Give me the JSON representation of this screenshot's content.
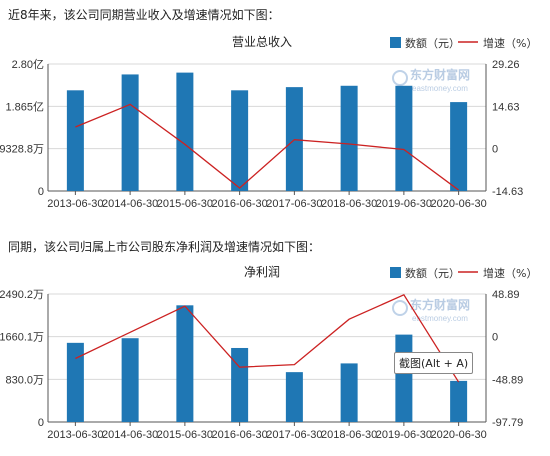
{
  "intro_1": "近8年来，该公司同期营业收入及增速情况如下图：",
  "intro_2": "同期，该公司归属上市公司股东净利润及增速情况如下图：",
  "tooltip": "截图(Alt + A)",
  "watermark": {
    "brand": "东方财富网",
    "url": "eastmoney.com"
  },
  "colors": {
    "bar": "#1f77b4",
    "line": "#cc2222",
    "grid": "#d8d8d8",
    "axis": "#555555"
  },
  "chart_data": [
    {
      "type": "bar",
      "title": "营业总收入",
      "legend": {
        "bar_label": "数额（元）",
        "line_label": "增速（%）"
      },
      "categories": [
        "2013-06-30",
        "2014-06-30",
        "2015-06-30",
        "2016-06-30",
        "2017-06-30",
        "2018-06-30",
        "2019-06-30",
        "2020-06-30"
      ],
      "bar_values": [
        2.22,
        2.57,
        2.61,
        2.22,
        2.29,
        2.32,
        2.32,
        1.96
      ],
      "line_values": [
        7.5,
        15.3,
        1.5,
        -13.6,
        3.1,
        1.6,
        -0.3,
        -14.3
      ],
      "y_left_ticks": [
        "2.80亿",
        "1.865亿",
        "9328.8万",
        "0"
      ],
      "y_left_range": [
        0,
        2.8
      ],
      "y_right_ticks": [
        "29.26",
        "14.63",
        "0",
        "-14.63"
      ],
      "y_right_range": [
        -14.63,
        29.26
      ]
    },
    {
      "type": "bar",
      "title": "净利润",
      "legend": {
        "bar_label": "数额（元）",
        "line_label": "增速（%）"
      },
      "categories": [
        "2013-06-30",
        "2014-06-30",
        "2015-06-30",
        "2016-06-30",
        "2017-06-30",
        "2018-06-30",
        "2019-06-30",
        "2020-06-30"
      ],
      "bar_values": [
        1540,
        1630,
        2270,
        1440,
        970,
        1140,
        1700,
        800
      ],
      "line_values": [
        -25,
        5,
        35,
        -35,
        -32,
        20,
        48,
        -52
      ],
      "y_left_ticks": [
        "2490.2万",
        "1660.1万",
        "830.0万",
        "0"
      ],
      "y_left_range": [
        0,
        2490.2
      ],
      "y_right_ticks": [
        "48.89",
        "0",
        "-48.89",
        "-97.79"
      ],
      "y_right_range": [
        -97.79,
        48.89
      ]
    }
  ]
}
